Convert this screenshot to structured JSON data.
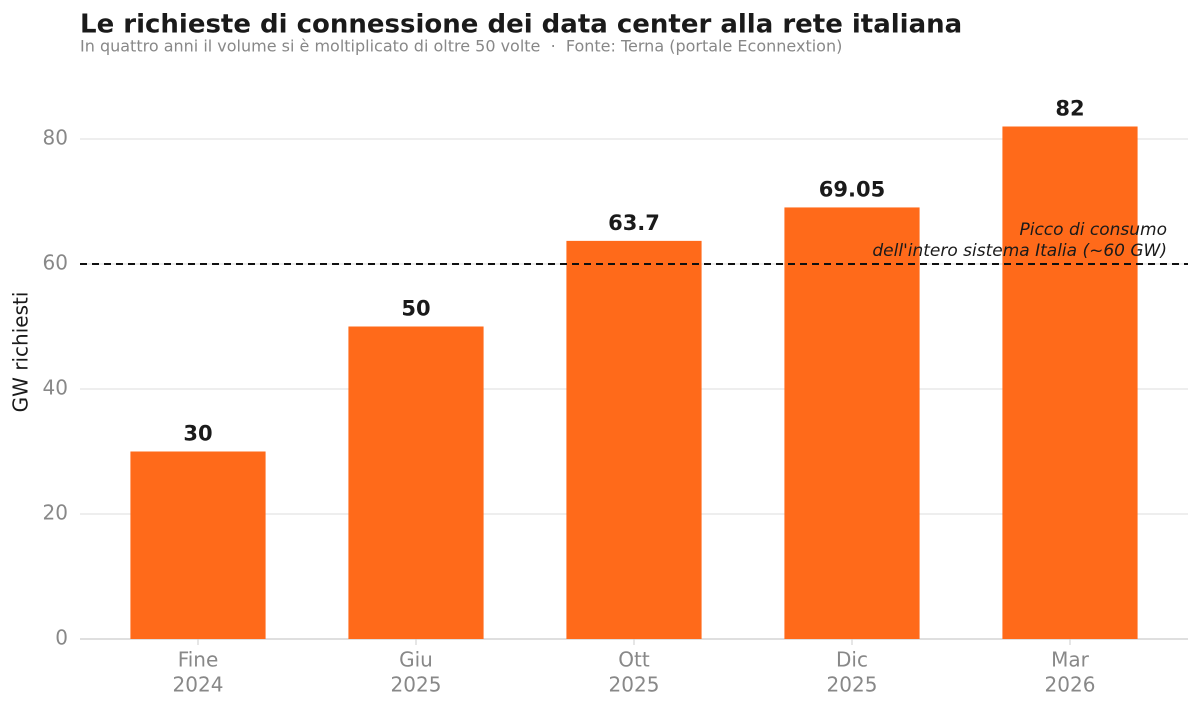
{
  "chart_data": {
    "type": "bar",
    "title": "Le richieste di connessione dei data center alla rete italiana",
    "subtitle": "In quattro anni il volume si è moltiplicato di oltre 50 volte  ·  Fonte: Terna (portale Econnextion)",
    "y_label": "GW richiesti",
    "categories": [
      [
        "Fine",
        "2024"
      ],
      [
        "Giu",
        "2025"
      ],
      [
        "Ott",
        "2025"
      ],
      [
        "Dic",
        "2025"
      ],
      [
        "Mar",
        "2026"
      ]
    ],
    "values": [
      30,
      50,
      63.7,
      69.05,
      82
    ],
    "color": "#ff6a1a",
    "ylim": [
      0,
      88.2
    ],
    "yticks": [
      0,
      20,
      40,
      60,
      80
    ],
    "grid": true,
    "reference_line": {
      "value": 60,
      "annotation": [
        "Picco di consumo",
        "dell'intero sistema Italia (~60 GW)"
      ]
    }
  }
}
